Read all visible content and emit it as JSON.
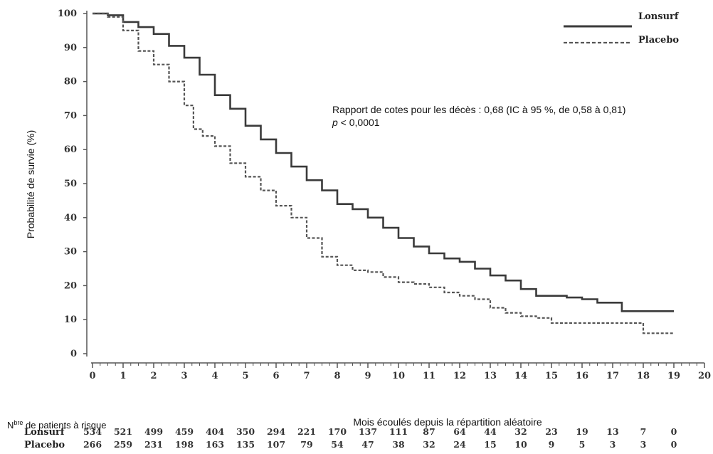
{
  "chart_data": {
    "type": "line",
    "xlabel": "Mois écoulés depuis la répartition aléatoire",
    "ylabel": "Probabilité de survie (%)",
    "xlim": [
      0,
      20
    ],
    "ylim": [
      0,
      100
    ],
    "x_ticks": [
      "0",
      "1",
      "2",
      "3",
      "4",
      "5",
      "6",
      "7",
      "8",
      "9",
      "10",
      "11",
      "12",
      "13",
      "14",
      "15",
      "16",
      "17",
      "18",
      "19",
      "20"
    ],
    "y_ticks": [
      "0",
      "10",
      "20",
      "30",
      "40",
      "50",
      "60",
      "70",
      "80",
      "90",
      "100"
    ],
    "grid": false,
    "legend_position": "top-right",
    "annotation": {
      "line1": "Rapport de cotes pour les décès : 0,68 (IC à 95 %, de 0,58 à 0,81)",
      "line2_italic": "p",
      "line2_rest": " < 0,0001"
    },
    "series": [
      {
        "name": "Lonsurf",
        "style": "solid",
        "color": "#3a3a3a",
        "points": [
          [
            0,
            100
          ],
          [
            0.5,
            99.5
          ],
          [
            1,
            97.5
          ],
          [
            1.5,
            96
          ],
          [
            2,
            94
          ],
          [
            2.5,
            90.5
          ],
          [
            3,
            87
          ],
          [
            3.5,
            82
          ],
          [
            4,
            76
          ],
          [
            4.5,
            72
          ],
          [
            5,
            67
          ],
          [
            5.5,
            63
          ],
          [
            6,
            59
          ],
          [
            6.5,
            55
          ],
          [
            7,
            51
          ],
          [
            7.5,
            48
          ],
          [
            8,
            44
          ],
          [
            8.5,
            42.5
          ],
          [
            9,
            40
          ],
          [
            9.5,
            37
          ],
          [
            10,
            34
          ],
          [
            10.5,
            31.5
          ],
          [
            11,
            29.5
          ],
          [
            11.5,
            28
          ],
          [
            12,
            27
          ],
          [
            12.5,
            25
          ],
          [
            13,
            23
          ],
          [
            13.5,
            21.5
          ],
          [
            14,
            19
          ],
          [
            14.5,
            17
          ],
          [
            15,
            17
          ],
          [
            15.5,
            16.5
          ],
          [
            16,
            16
          ],
          [
            16.5,
            15
          ],
          [
            17,
            15
          ],
          [
            17.3,
            12.5
          ],
          [
            18,
            12.5
          ],
          [
            19,
            12.5
          ]
        ]
      },
      {
        "name": "Placebo",
        "style": "dashed",
        "color": "#555555",
        "points": [
          [
            0,
            100
          ],
          [
            0.5,
            99
          ],
          [
            1,
            95
          ],
          [
            1.5,
            89
          ],
          [
            2,
            85
          ],
          [
            2.5,
            80
          ],
          [
            3,
            73
          ],
          [
            3.3,
            66
          ],
          [
            3.6,
            64
          ],
          [
            4,
            61
          ],
          [
            4.5,
            56
          ],
          [
            5,
            52
          ],
          [
            5.5,
            48
          ],
          [
            6,
            43.5
          ],
          [
            6.5,
            40
          ],
          [
            7,
            34
          ],
          [
            7.5,
            28.5
          ],
          [
            8,
            26
          ],
          [
            8.5,
            24.5
          ],
          [
            9,
            24
          ],
          [
            9.5,
            22.5
          ],
          [
            10,
            21
          ],
          [
            10.5,
            20.5
          ],
          [
            11,
            19.5
          ],
          [
            11.5,
            18
          ],
          [
            12,
            17
          ],
          [
            12.5,
            16
          ],
          [
            13,
            13.5
          ],
          [
            13.5,
            12
          ],
          [
            14,
            11
          ],
          [
            14.5,
            10.5
          ],
          [
            15,
            9
          ],
          [
            15.5,
            9
          ],
          [
            16,
            9
          ],
          [
            17,
            9
          ],
          [
            17.5,
            9
          ],
          [
            18,
            6
          ],
          [
            19,
            6
          ]
        ]
      }
    ],
    "risk_table": {
      "title_main": "N",
      "title_sup": "bre",
      "title_rest": " de patients à risque",
      "rows": [
        {
          "name": "Lonsurf",
          "values": [
            "534",
            "521",
            "499",
            "459",
            "404",
            "350",
            "294",
            "221",
            "170",
            "137",
            "111",
            "87",
            "64",
            "44",
            "32",
            "23",
            "19",
            "13",
            "7",
            "0"
          ]
        },
        {
          "name": "Placebo",
          "values": [
            "266",
            "259",
            "231",
            "198",
            "163",
            "135",
            "107",
            "79",
            "54",
            "47",
            "38",
            "32",
            "24",
            "15",
            "10",
            "9",
            "5",
            "3",
            "3",
            "0"
          ]
        }
      ]
    }
  }
}
